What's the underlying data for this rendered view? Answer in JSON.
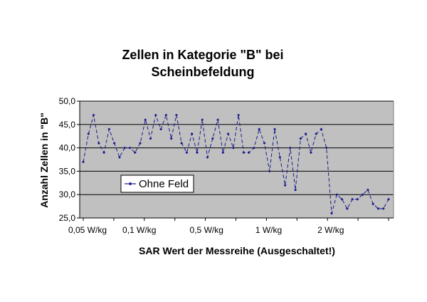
{
  "chart_data": {
    "type": "line",
    "title": [
      "Zellen in Kategorie \"B\" bei",
      "Scheinbefeldung"
    ],
    "xlabel": "SAR Wert der Messreihe (Ausgeschaltet!)",
    "ylabel": "Anzahl Zellen in \"B\"",
    "ylim": [
      25,
      50
    ],
    "y_ticks": [
      25,
      30,
      35,
      40,
      45,
      50
    ],
    "y_tick_labels": [
      "25,0",
      "30,0",
      "35,0",
      "40,0",
      "45,0",
      "50,0"
    ],
    "x_tick_labels": [
      {
        "label": "0,05 W/kg",
        "at": 1
      },
      {
        "label": "0,1 W/kg",
        "at": 11
      },
      {
        "label": "0,5 W/kg",
        "at": 24
      },
      {
        "label": "1 W/kg",
        "at": 36
      },
      {
        "label": "2 W/kg",
        "at": 48
      }
    ],
    "gridlines": "horizontal",
    "plot_background": "#c0c0c0",
    "legend_position": "lower-left inside plot",
    "series": [
      {
        "name": "Ohne Feld",
        "color": "#1c1c8c",
        "values": [
          37,
          43,
          47,
          41,
          39,
          44,
          41,
          38,
          40,
          40,
          39,
          41,
          46,
          42,
          47,
          44,
          47,
          42,
          47,
          41,
          39,
          43,
          39,
          46,
          38,
          42,
          46,
          39,
          43,
          40,
          47,
          39,
          39,
          40,
          44,
          41,
          35,
          44,
          38,
          32,
          40,
          31,
          42,
          43,
          39,
          43,
          44,
          40,
          26,
          30,
          29,
          27,
          29,
          29,
          30,
          31,
          28,
          27,
          27,
          29
        ]
      }
    ]
  }
}
